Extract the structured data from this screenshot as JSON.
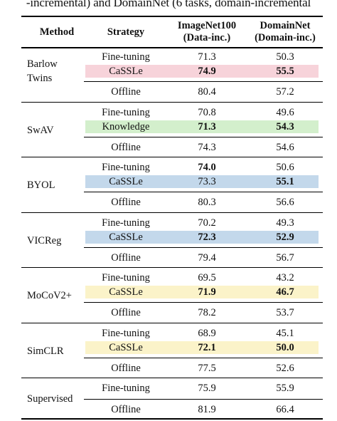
{
  "caption": "-incremental) and DomainNet (6 tasks, domain-incremental",
  "headers": {
    "method": "Method",
    "strategy": "Strategy",
    "col1_line1": "ImageNet100",
    "col1_line2": "(Data-inc.)",
    "col2_line1": "DomainNet",
    "col2_line2": "(Domain-inc.)"
  },
  "highlight_colors": {
    "pink": "#f7d3da",
    "green": "#d3efcc",
    "blue": "#c3d8eb",
    "yellow": "#fbf3c9"
  },
  "groups": [
    {
      "method": [
        "Barlow",
        "Twins"
      ],
      "rows": [
        {
          "strategy": "Fine-tuning",
          "col1": "71.3",
          "col2": "50.3"
        },
        {
          "strategy": "CaSSLe",
          "col1": "74.9",
          "col2": "55.5",
          "highlight": "pink",
          "bold1": true,
          "bold2": true
        },
        {
          "strategy": "Offline",
          "col1": "80.4",
          "col2": "57.2"
        }
      ]
    },
    {
      "method": [
        "SwAV"
      ],
      "rows": [
        {
          "strategy": "Fine-tuning",
          "col1": "70.8",
          "col2": "49.6"
        },
        {
          "strategy": "Knowledge",
          "col1": "71.3",
          "col2": "54.3",
          "highlight": "green",
          "bold1": true,
          "bold2": true
        },
        {
          "strategy": "Offline",
          "col1": "74.3",
          "col2": "54.6"
        }
      ]
    },
    {
      "method": [
        "BYOL"
      ],
      "rows": [
        {
          "strategy": "Fine-tuning",
          "col1": "74.0",
          "col2": "50.6",
          "bold1": true
        },
        {
          "strategy": "CaSSLe",
          "col1": "73.3",
          "col2": "55.1",
          "highlight": "blue",
          "bold2": true
        },
        {
          "strategy": "Offline",
          "col1": "80.3",
          "col2": "56.6"
        }
      ]
    },
    {
      "method": [
        "VICReg"
      ],
      "rows": [
        {
          "strategy": "Fine-tuning",
          "col1": "70.2",
          "col2": "49.3"
        },
        {
          "strategy": "CaSSLe",
          "col1": "72.3",
          "col2": "52.9",
          "highlight": "blue",
          "bold1": true,
          "bold2": true
        },
        {
          "strategy": "Offline",
          "col1": "79.4",
          "col2": "56.7"
        }
      ]
    },
    {
      "method": [
        "MoCoV2+"
      ],
      "rows": [
        {
          "strategy": "Fine-tuning",
          "col1": "69.5",
          "col2": "43.2"
        },
        {
          "strategy": "CaSSLe",
          "col1": "71.9",
          "col2": "46.7",
          "highlight": "yellow",
          "bold1": true,
          "bold2": true
        },
        {
          "strategy": "Offline",
          "col1": "78.2",
          "col2": "53.7"
        }
      ]
    },
    {
      "method": [
        "SimCLR"
      ],
      "rows": [
        {
          "strategy": "Fine-tuning",
          "col1": "68.9",
          "col2": "45.1"
        },
        {
          "strategy": "CaSSLe",
          "col1": "72.1",
          "col2": "50.0",
          "highlight": "yellow",
          "bold1": true,
          "bold2": true
        },
        {
          "strategy": "Offline",
          "col1": "77.5",
          "col2": "52.6"
        }
      ]
    },
    {
      "method": [
        "Supervised"
      ],
      "rows": [
        {
          "strategy": "Fine-tuning",
          "col1": "75.9",
          "col2": "55.9"
        },
        {
          "strategy": "Offline",
          "col1": "81.9",
          "col2": "66.4"
        }
      ]
    }
  ]
}
